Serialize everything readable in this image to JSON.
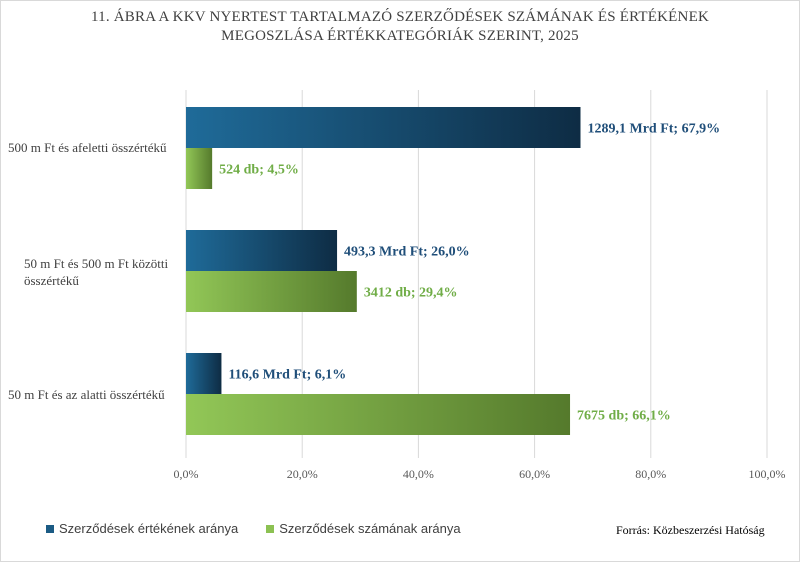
{
  "title_line1": "11. ÁBRA  A KKV NYERTEST TARTALMAZÓ SZERZŐDÉSEK SZÁMÁNAK ÉS ÉRTÉKÉNEK",
  "title_line2": "MEGOSZLÁSA ÉRTÉKKATEGÓRIÁK SZERINT, 2025",
  "source": "Forrás: Közbeszerzési Hatóság",
  "colors": {
    "value_series": "#1b5b84",
    "value_series_dark": "#0f2d45",
    "count_series": "#8cc152",
    "count_series_dark": "#5a7f2f",
    "value_label": "#1f4e79",
    "count_label": "#70ad47"
  },
  "chart_data": {
    "type": "bar",
    "orientation": "horizontal",
    "title": "11. ÁBRA  A KKV NYERTEST TARTALMAZÓ SZERZŐDÉSEK SZÁMÁNAK ÉS ÉRTÉKÉNEK MEGOSZLÁSA ÉRTÉKKATEGÓRIÁK SZERINT, 2025",
    "categories": [
      "500 m Ft és afeletti összértékű",
      "50 m Ft és 500 m Ft közötti összértékű",
      "50 m Ft és az alatti összértékű"
    ],
    "series": [
      {
        "name": "Szerződések értékének aránya",
        "values": [
          67.9,
          26.0,
          6.1
        ],
        "labels": [
          "1289,1 Mrd Ft; 67,9%",
          "493,3 Mrd Ft; 26,0%",
          "116,6 Mrd Ft; 6,1%"
        ]
      },
      {
        "name": "Szerződések számának aránya",
        "values": [
          4.5,
          29.4,
          66.1
        ],
        "labels": [
          "524 db; 4,5%",
          "3412 db; 29,4%",
          "7675 db; 66,1%"
        ]
      }
    ],
    "xlim": [
      0,
      100
    ],
    "xticks": [
      0,
      20,
      40,
      60,
      80,
      100
    ],
    "xtick_labels": [
      "0,0%",
      "20,0%",
      "40,0%",
      "60,0%",
      "80,0%",
      "100,0%"
    ],
    "grid": true,
    "legend_position": "bottom-left"
  }
}
